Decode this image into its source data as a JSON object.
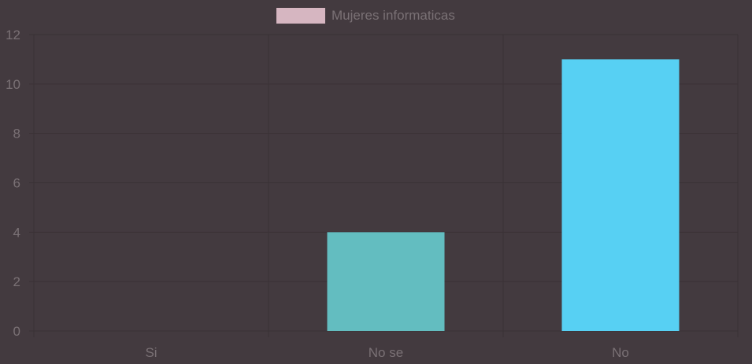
{
  "chart_data": {
    "type": "bar",
    "categories": [
      "Si",
      "No se",
      "No"
    ],
    "series": [
      {
        "name": "Mujeres informaticas",
        "values": [
          0,
          4,
          11
        ],
        "colors": [
          "#d6b6c1",
          "#63bdc0",
          "#57d0f3"
        ]
      }
    ],
    "ylim": [
      0,
      12
    ],
    "yticks": [
      0,
      2,
      4,
      6,
      8,
      10,
      12
    ],
    "grid": true,
    "legend_position": "top-center",
    "legend_swatch_color": "#d6b6c1"
  },
  "colors": {
    "background": "#433a3f",
    "grid": "#3a3236",
    "text": "#7a7175"
  }
}
